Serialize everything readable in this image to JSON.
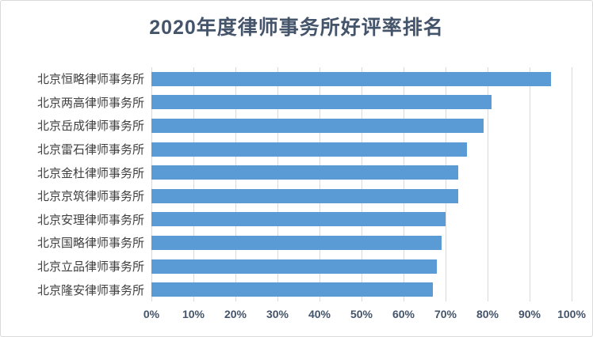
{
  "chart_data": {
    "type": "bar",
    "orientation": "horizontal",
    "title": "2020年度律师事务所好评率排名",
    "categories": [
      "北京恒略律师事务所",
      "北京两高律师事务所",
      "北京岳成律师事务所",
      "北京雷石律师事务所",
      "北京金杜律师事务所",
      "北京京筑律师事务所",
      "北京安理律师事务所",
      "北京国略律师事务所",
      "北京立品律师事务所",
      "北京隆安律师事务所"
    ],
    "values": [
      95,
      81,
      79,
      75,
      73,
      73,
      70,
      69,
      68,
      67
    ],
    "x_ticks": [
      "0%",
      "10%",
      "20%",
      "30%",
      "40%",
      "50%",
      "60%",
      "70%",
      "80%",
      "90%",
      "100%"
    ],
    "xlim": [
      0,
      100
    ],
    "xlabel": "",
    "ylabel": "",
    "grid": "vertical",
    "legend": "none",
    "bar_color": "#5b9bd5",
    "title_color": "#44546a",
    "axis_label_color": "#44546a",
    "category_label_color": "#404040",
    "gridline_color": "#d9d9d9"
  }
}
